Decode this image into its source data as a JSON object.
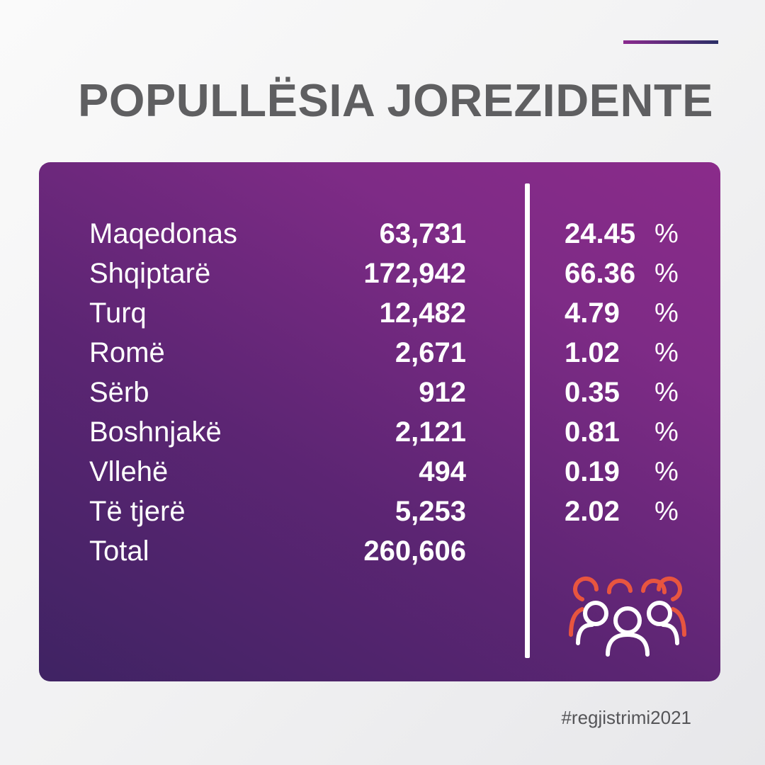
{
  "title": "POPULLËSIA JOREZIDENTE",
  "table": {
    "rows": [
      {
        "name": "Maqedonas",
        "value": "63,731",
        "percent": "24.45",
        "percent_sign": "%"
      },
      {
        "name": "Shqiptarë",
        "value": "172,942",
        "percent": "66.36",
        "percent_sign": "%"
      },
      {
        "name": "Turq",
        "value": "12,482",
        "percent": "4.79",
        "percent_sign": "%"
      },
      {
        "name": "Romë",
        "value": "2,671",
        "percent": "1.02",
        "percent_sign": "%"
      },
      {
        "name": "Sërb",
        "value": "912",
        "percent": "0.35",
        "percent_sign": "%"
      },
      {
        "name": "Boshnjakë",
        "value": "2,121",
        "percent": "0.81",
        "percent_sign": "%"
      },
      {
        "name": "Vllehë",
        "value": "494",
        "percent": "0.19",
        "percent_sign": "%"
      },
      {
        "name": "Të tjerë",
        "value": "5,253",
        "percent": "2.02",
        "percent_sign": "%"
      }
    ],
    "total": {
      "name": "Total",
      "value": "260,606"
    }
  },
  "icon": "people-group-icon",
  "hashtag": "#regjistrimi2021",
  "colors": {
    "card_start": "#3f2363",
    "card_end": "#8a2b8a",
    "title": "#5f5f61",
    "icon_back": "#e8553f",
    "icon_front": "#ffffff",
    "accent_line_start": "#8a2a8e",
    "accent_line_end": "#2b2f66"
  }
}
